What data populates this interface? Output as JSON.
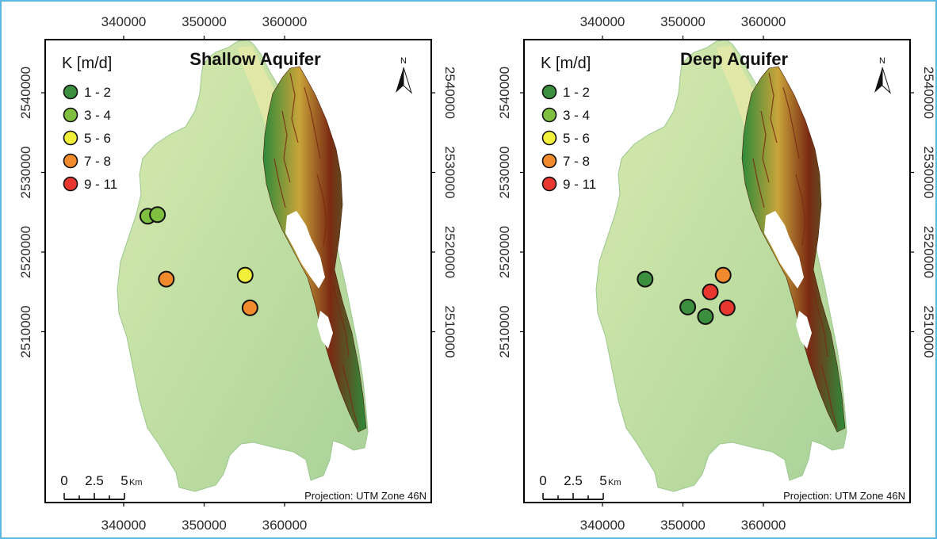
{
  "figure": {
    "x_ticks": [
      "340000",
      "350000",
      "360000"
    ],
    "y_ticks": [
      "2540000",
      "2530000",
      "2520000",
      "2510000"
    ],
    "legend_title": "K [m/d]",
    "legend_classes": [
      {
        "label": "1 - 2",
        "color": "#3b8f3e"
      },
      {
        "label": "3 - 4",
        "color": "#7fbf3f"
      },
      {
        "label": "5 - 6",
        "color": "#f2ef3a"
      },
      {
        "label": "7 - 8",
        "color": "#f08a2c"
      },
      {
        "label": "9 - 11",
        "color": "#e8372f"
      }
    ],
    "north_label": "N",
    "scale_labels": [
      "0",
      "2.5",
      "5"
    ],
    "scale_unit": "Km",
    "projection": "Projection: UTM Zone 46N"
  },
  "maps": [
    {
      "title": "Shallow Aquifer",
      "points": [
        {
          "easting": 343000,
          "northing": 2524500,
          "class": "3 - 4"
        },
        {
          "easting": 344200,
          "northing": 2524700,
          "class": "3 - 4"
        },
        {
          "easting": 345300,
          "northing": 2516600,
          "class": "7 - 8"
        },
        {
          "easting": 355100,
          "northing": 2517100,
          "class": "5 - 6"
        },
        {
          "easting": 355700,
          "northing": 2513000,
          "class": "7 - 8"
        }
      ]
    },
    {
      "title": "Deep Aquifer",
      "points": [
        {
          "easting": 345300,
          "northing": 2516600,
          "class": "1 - 2"
        },
        {
          "easting": 350600,
          "northing": 2513100,
          "class": "1 - 2"
        },
        {
          "easting": 352800,
          "northing": 2511900,
          "class": "1 - 2"
        },
        {
          "easting": 353400,
          "northing": 2515000,
          "class": "9 - 11"
        },
        {
          "easting": 355000,
          "northing": 2517100,
          "class": "7 - 8"
        },
        {
          "easting": 355500,
          "northing": 2513000,
          "class": "9 - 11"
        }
      ]
    }
  ],
  "colors": {
    "lowland": "#bcdca0",
    "lowland_light": "#d8eab0",
    "forest": "#2e8a3a",
    "hill": "#c9a43a",
    "peak": "#7a2a12",
    "cloud": "#ffffff",
    "frame": "#000000",
    "border": "#5bb8e3"
  }
}
